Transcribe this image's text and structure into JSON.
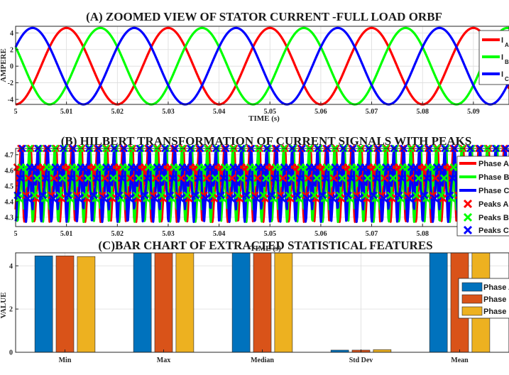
{
  "chart_data": [
    {
      "type": "line",
      "title": "(A) ZOOMED VIEW OF STATOR CURRENT -FULL LOAD ORBF",
      "xlabel": "TIME (s)",
      "ylabel": "AMPERE",
      "xlim": [
        5,
        5.097
      ],
      "ylim": [
        -4.6,
        4.8
      ],
      "xticks": [
        "5",
        "5.01",
        "5.02",
        "5.03",
        "5.04",
        "5.05",
        "5.06",
        "5.07",
        "5.08",
        "5.09"
      ],
      "yticks": [
        "-4",
        "-2",
        "0",
        "2",
        "4"
      ],
      "grid": true,
      "legend_position": "top-right",
      "series": [
        {
          "name": "I",
          "sub": "A",
          "color": "#ff0000",
          "amplitude": 4.6,
          "frequency_hz": 50,
          "phase_deg": -90
        },
        {
          "name": "I",
          "sub": "B",
          "color": "#00ff00",
          "amplitude": 4.6,
          "frequency_hz": 50,
          "phase_deg": 150
        },
        {
          "name": "I",
          "sub": "C",
          "color": "#0000ff",
          "amplitude": 4.6,
          "frequency_hz": 50,
          "phase_deg": 30
        }
      ]
    },
    {
      "type": "line",
      "title": "(B) HILBERT TRANSFORMATION OF CURRENT SIGNALS WITH PEAKS",
      "xlabel": "TIME (s)",
      "ylabel": "",
      "xlim": [
        5,
        5.097
      ],
      "ylim": [
        4.24,
        4.74
      ],
      "xticks": [
        "5",
        "5.01",
        "5.02",
        "5.03",
        "5.04",
        "5.05",
        "5.06",
        "5.07",
        "5.08",
        "5.09"
      ],
      "yticks": [
        "4.3",
        "4.4",
        "4.5",
        "4.6",
        "4.7"
      ],
      "grid": true,
      "legend_position": "right",
      "envelope_shape": [
        [
          0.0,
          4.35
        ],
        [
          0.3,
          4.62
        ],
        [
          0.6,
          4.5
        ],
        [
          1.05,
          4.74
        ],
        [
          1.35,
          4.47
        ],
        [
          1.7,
          4.27
        ],
        [
          2.05,
          4.44
        ],
        [
          2.55,
          4.55
        ],
        [
          3.0,
          4.74
        ],
        [
          3.35,
          4.45
        ],
        [
          3.7,
          4.27
        ],
        [
          4.05,
          4.42
        ],
        [
          4.45,
          4.62
        ],
        [
          5.0,
          4.35
        ]
      ],
      "series": [
        {
          "name": "Phase A",
          "color": "#ff0000",
          "offset_ms": 0
        },
        {
          "name": "Phase B",
          "color": "#00ff00",
          "offset_ms": 6.667
        },
        {
          "name": "Phase C",
          "color": "#0000ff",
          "offset_ms": 3.333
        }
      ],
      "peak_series": [
        {
          "name": "Peaks A",
          "color": "#ff0000"
        },
        {
          "name": "Peaks B",
          "color": "#00ff00"
        },
        {
          "name": "Peaks C",
          "color": "#0000ff"
        }
      ]
    },
    {
      "type": "bar",
      "title": "(C)BAR CHART OF EXTRACTED STATISTICAL FEATURES",
      "xlabel": "",
      "ylabel": "VALUE",
      "ylim": [
        0,
        4.6
      ],
      "yticks": [
        "0",
        "2",
        "4"
      ],
      "categories": [
        "Min",
        "Max",
        "Median",
        "Std Dev",
        "Mean"
      ],
      "grid": true,
      "legend_position": "top-right",
      "series": [
        {
          "name": "Phase A",
          "color": "#0072bd",
          "values": [
            4.46,
            4.72,
            4.62,
            0.1,
            4.62
          ]
        },
        {
          "name": "Phase B",
          "color": "#d95319",
          "values": [
            4.46,
            4.72,
            4.63,
            0.1,
            4.63
          ]
        },
        {
          "name": "Phase C",
          "color": "#edb120",
          "values": [
            4.43,
            4.72,
            4.61,
            0.12,
            4.6
          ]
        }
      ]
    }
  ]
}
